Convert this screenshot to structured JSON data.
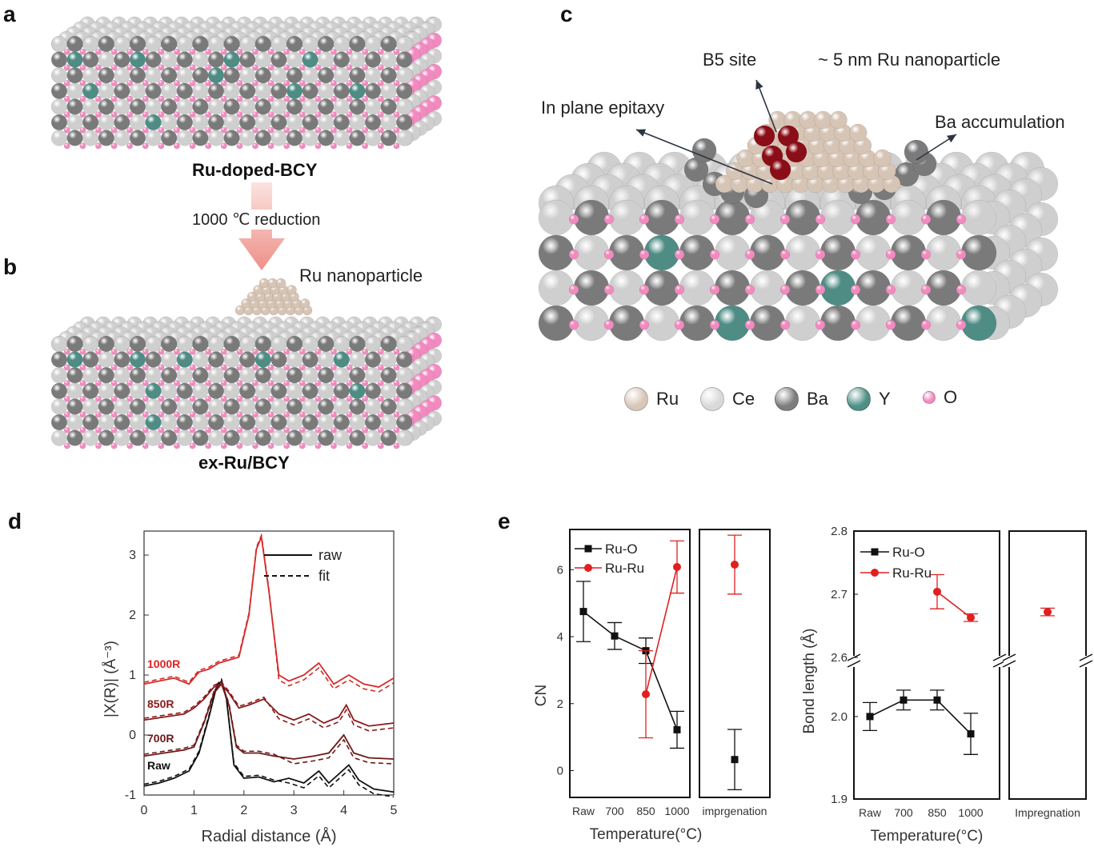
{
  "panels": {
    "a": {
      "letter": "a",
      "caption": "Ru-doped-BCY"
    },
    "arrow": {
      "label": "1000 ℃ reduction"
    },
    "b": {
      "letter": "b",
      "caption": "ex-Ru/BCY",
      "np_label": "Ru nanoparticle"
    },
    "c": {
      "letter": "c",
      "labels": {
        "b5": "B5 site",
        "np": "~ 5 nm Ru nanoparticle",
        "epitaxy": "In plane epitaxy",
        "ba": "Ba accumulation"
      },
      "legend": [
        {
          "name": "Ru",
          "color": "#d8c6b8"
        },
        {
          "name": "Ce",
          "color": "#d9d9d9"
        },
        {
          "name": "Ba",
          "color": "#7d7d7d"
        },
        {
          "name": "Y",
          "color": "#4f8f86"
        },
        {
          "name": "O",
          "color": "#f08cc0"
        }
      ]
    },
    "d": {
      "letter": "d"
    },
    "e": {
      "letter": "e"
    }
  },
  "colors": {
    "ce": "#cfcfcf",
    "ba": "#7a7a7a",
    "o": "#f28ac0",
    "y": "#4e8c84",
    "ru": "#d6c4b5",
    "b5": "#8b0d17",
    "red": "#e02020",
    "black": "#111111"
  },
  "chart_data": [
    {
      "type": "line",
      "id": "d",
      "xlabel": "Radial distance (Å)",
      "ylabel": "|X(R)| (Å⁻³)",
      "xlim": [
        0,
        5
      ],
      "ylim": [
        -1,
        3.4
      ],
      "xticks": [
        "0",
        "1",
        "2",
        "3",
        "4",
        "5"
      ],
      "yticks": [
        "-1",
        "0",
        "1",
        "2",
        "3"
      ],
      "legend": [
        {
          "name": "raw",
          "style": "solid"
        },
        {
          "name": "fit",
          "style": "dashed"
        }
      ],
      "series": [
        {
          "name": "Raw",
          "color": "#111111",
          "x": [
            0,
            0.3,
            0.6,
            0.9,
            1.1,
            1.3,
            1.45,
            1.55,
            1.65,
            1.8,
            2.0,
            2.3,
            2.6,
            2.9,
            3.2,
            3.5,
            3.7,
            3.9,
            4.1,
            4.3,
            4.6,
            5.0
          ],
          "y": [
            -0.85,
            -0.8,
            -0.72,
            -0.6,
            -0.3,
            0.3,
            0.8,
            0.9,
            0.6,
            -0.5,
            -0.72,
            -0.7,
            -0.78,
            -0.72,
            -0.8,
            -0.6,
            -0.8,
            -0.65,
            -0.5,
            -0.75,
            -0.9,
            -0.95
          ]
        },
        {
          "name": "700R",
          "color": "#6e1818",
          "x": [
            0,
            0.4,
            0.8,
            1.0,
            1.2,
            1.4,
            1.55,
            1.7,
            1.85,
            2.0,
            2.3,
            2.6,
            3.0,
            3.4,
            3.7,
            4.0,
            4.2,
            4.5,
            5.0
          ],
          "y": [
            -0.35,
            -0.3,
            -0.25,
            -0.2,
            0.2,
            0.7,
            0.85,
            0.5,
            -0.2,
            -0.3,
            -0.3,
            -0.35,
            -0.4,
            -0.35,
            -0.3,
            0.0,
            -0.3,
            -0.38,
            -0.4
          ]
        },
        {
          "name": "850R",
          "color": "#8b1a1a",
          "x": [
            0,
            0.4,
            0.8,
            1.0,
            1.2,
            1.4,
            1.55,
            1.7,
            1.9,
            2.1,
            2.4,
            2.7,
            3.0,
            3.3,
            3.6,
            3.9,
            4.05,
            4.2,
            4.5,
            5.0
          ],
          "y": [
            0.25,
            0.3,
            0.35,
            0.45,
            0.6,
            0.8,
            0.85,
            0.7,
            0.45,
            0.5,
            0.6,
            0.35,
            0.25,
            0.35,
            0.2,
            0.3,
            0.5,
            0.25,
            0.15,
            0.2
          ]
        },
        {
          "name": "1000R",
          "color": "#d62a2a",
          "x": [
            0,
            0.3,
            0.6,
            0.9,
            1.1,
            1.3,
            1.5,
            1.7,
            1.9,
            2.1,
            2.25,
            2.35,
            2.5,
            2.7,
            2.9,
            3.2,
            3.5,
            3.8,
            4.1,
            4.4,
            4.7,
            5.0
          ],
          "y": [
            0.85,
            0.9,
            0.95,
            0.85,
            1.05,
            1.1,
            1.2,
            1.25,
            1.3,
            2.0,
            3.1,
            3.3,
            2.4,
            1.0,
            0.9,
            1.0,
            1.2,
            0.85,
            1.0,
            0.85,
            0.8,
            0.95
          ]
        }
      ],
      "series_labels": [
        "1000R",
        "850R",
        "700R",
        "Raw"
      ]
    },
    {
      "type": "line",
      "id": "e-cn",
      "ylabel": "CN",
      "xlabel": "Temperature(°C)",
      "categories": [
        "Raw",
        "700",
        "850",
        "1000"
      ],
      "extra_category": "imprgenation",
      "ylim": [
        -0.8,
        7.2
      ],
      "yticks": [
        "0",
        "2",
        "4",
        "6"
      ],
      "series": [
        {
          "name": "Ru-O",
          "color": "#111111",
          "values": [
            4.75,
            4.02,
            3.58,
            1.22
          ],
          "errors": [
            0.9,
            0.4,
            0.38,
            0.55
          ],
          "extra": {
            "value": 0.33,
            "error": 0.9
          }
        },
        {
          "name": "Ru-Ru",
          "color": "#e02020",
          "values": [
            null,
            null,
            2.28,
            6.08
          ],
          "errors": [
            null,
            null,
            1.3,
            0.78
          ],
          "extra": {
            "value": 6.15,
            "error": 0.88
          }
        }
      ]
    },
    {
      "type": "line",
      "id": "e-bond",
      "ylabel": "Bond length (Å)",
      "xlabel": "Temperature(°C)",
      "categories": [
        "Raw",
        "700",
        "850",
        "1000"
      ],
      "extra_category": "Impregnation",
      "yticks": [
        "1.9",
        "2.0",
        "2.6",
        "2.7",
        "2.8"
      ],
      "axis_break": [
        2.06,
        2.6
      ],
      "series": [
        {
          "name": "Ru-O",
          "color": "#111111",
          "values": [
            2.0,
            2.02,
            2.02,
            1.979
          ],
          "errors": [
            0.017,
            0.012,
            0.012,
            0.025
          ]
        },
        {
          "name": "Ru-Ru",
          "color": "#e02020",
          "values": [
            null,
            null,
            2.704,
            2.663
          ],
          "errors": [
            null,
            null,
            0.027,
            0.006
          ],
          "extra": {
            "value": 2.672,
            "error": 0.006
          }
        }
      ]
    }
  ]
}
